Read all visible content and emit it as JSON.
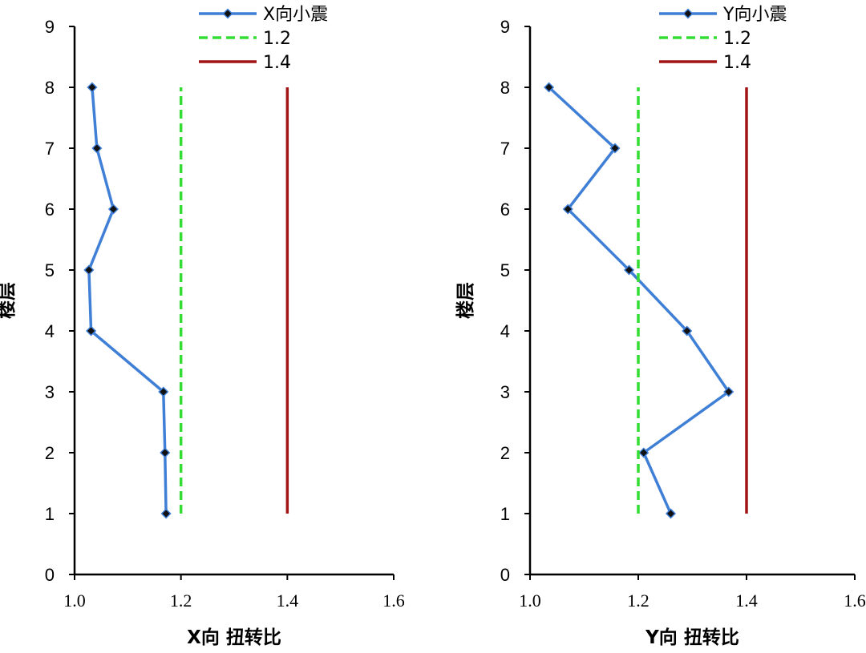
{
  "chart_data": [
    {
      "type": "line",
      "orientation": "horizontal-values-vertical-floors",
      "xlabel": "X向 扭转比",
      "ylabel": "楼层",
      "xlim": [
        1.0,
        1.6
      ],
      "ylim": [
        0,
        9
      ],
      "xticks": [
        "1.0",
        "1.2",
        "1.4",
        "1.6"
      ],
      "yticks": [
        "0",
        "1",
        "2",
        "3",
        "4",
        "5",
        "6",
        "7",
        "8",
        "9"
      ],
      "legend_position": "top",
      "series": [
        {
          "name": "X向小震",
          "color": "#3f7fd6",
          "style": "solid-with-diamond-markers",
          "points": [
            {
              "floor": 1,
              "value": 1.172
            },
            {
              "floor": 2,
              "value": 1.17
            },
            {
              "floor": 3,
              "value": 1.167
            },
            {
              "floor": 4,
              "value": 1.031
            },
            {
              "floor": 5,
              "value": 1.027
            },
            {
              "floor": 6,
              "value": 1.073
            },
            {
              "floor": 7,
              "value": 1.042
            },
            {
              "floor": 8,
              "value": 1.033
            }
          ]
        },
        {
          "name": "1.2",
          "color": "#33dd33",
          "style": "dashed",
          "points": [
            {
              "floor": 1,
              "value": 1.2
            },
            {
              "floor": 8,
              "value": 1.2
            }
          ]
        },
        {
          "name": "1.4",
          "color": "#a31515",
          "style": "solid",
          "points": [
            {
              "floor": 1,
              "value": 1.4
            },
            {
              "floor": 8,
              "value": 1.4
            }
          ]
        }
      ]
    },
    {
      "type": "line",
      "orientation": "horizontal-values-vertical-floors",
      "xlabel": "Y向 扭转比",
      "ylabel": "楼层",
      "xlim": [
        1.0,
        1.6
      ],
      "ylim": [
        0,
        9
      ],
      "xticks": [
        "1.0",
        "1.2",
        "1.4",
        "1.6"
      ],
      "yticks": [
        "0",
        "1",
        "2",
        "3",
        "4",
        "5",
        "6",
        "7",
        "8",
        "9"
      ],
      "legend_position": "top",
      "series": [
        {
          "name": "Y向小震",
          "color": "#3f7fd6",
          "style": "solid-with-diamond-markers",
          "points": [
            {
              "floor": 1,
              "value": 1.26
            },
            {
              "floor": 2,
              "value": 1.21
            },
            {
              "floor": 3,
              "value": 1.367
            },
            {
              "floor": 4,
              "value": 1.29
            },
            {
              "floor": 5,
              "value": 1.183
            },
            {
              "floor": 6,
              "value": 1.07
            },
            {
              "floor": 7,
              "value": 1.157
            },
            {
              "floor": 8,
              "value": 1.035
            }
          ]
        },
        {
          "name": "1.2",
          "color": "#33dd33",
          "style": "dashed",
          "points": [
            {
              "floor": 1,
              "value": 1.2
            },
            {
              "floor": 8,
              "value": 1.2
            }
          ]
        },
        {
          "name": "1.4",
          "color": "#a31515",
          "style": "solid",
          "points": [
            {
              "floor": 1,
              "value": 1.4
            },
            {
              "floor": 8,
              "value": 1.4
            }
          ]
        }
      ]
    }
  ]
}
